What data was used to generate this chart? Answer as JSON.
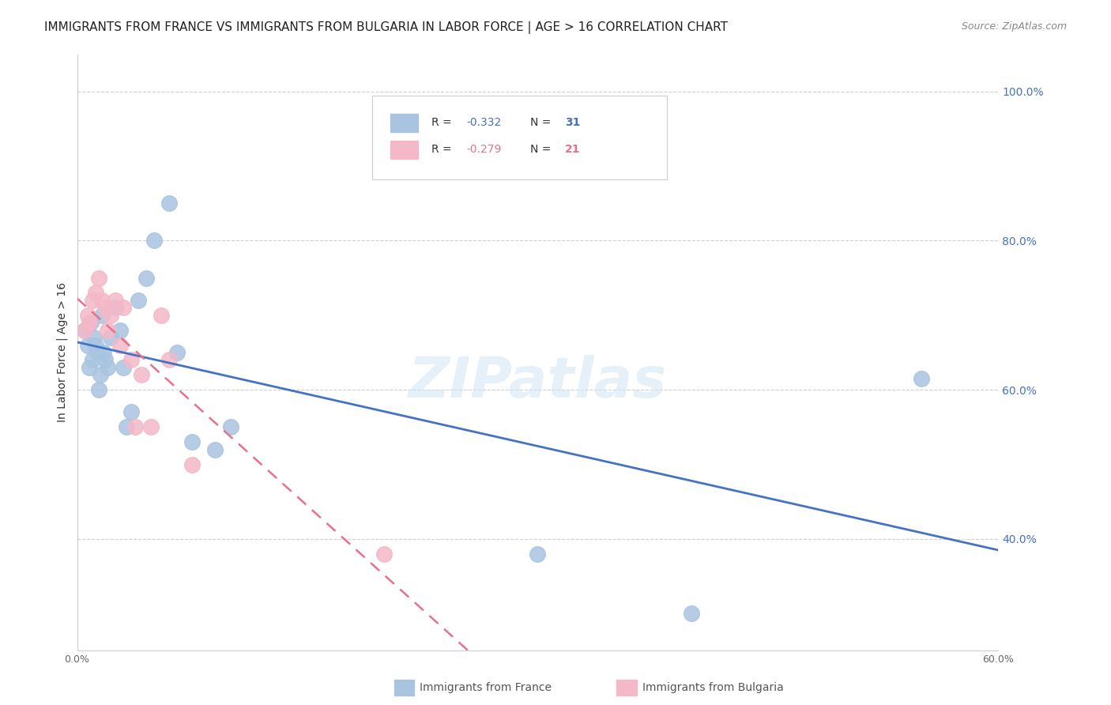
{
  "title": "IMMIGRANTS FROM FRANCE VS IMMIGRANTS FROM BULGARIA IN LABOR FORCE | AGE > 16 CORRELATION CHART",
  "source": "Source: ZipAtlas.com",
  "ylabel": "In Labor Force | Age > 16",
  "x_label_france": "Immigrants from France",
  "x_label_bulgaria": "Immigrants from Bulgaria",
  "x_min": 0.0,
  "x_max": 0.6,
  "y_min": 0.25,
  "y_max": 1.05,
  "france_color": "#a8c4e0",
  "france_line_color": "#4472c4",
  "bulgaria_color": "#f4b8c8",
  "bulgaria_line_color": "#e8708a",
  "right_axis_color": "#4472c4",
  "legend_france_r": "-0.332",
  "legend_france_n": "31",
  "legend_bulgaria_r": "-0.279",
  "legend_bulgaria_n": "21",
  "france_x": [
    0.005,
    0.007,
    0.008,
    0.009,
    0.01,
    0.011,
    0.012,
    0.013,
    0.014,
    0.015,
    0.016,
    0.017,
    0.018,
    0.02,
    0.022,
    0.025,
    0.028,
    0.03,
    0.032,
    0.035,
    0.04,
    0.045,
    0.05,
    0.06,
    0.065,
    0.075,
    0.09,
    0.1,
    0.3,
    0.4,
    0.55
  ],
  "france_y": [
    0.68,
    0.66,
    0.63,
    0.69,
    0.64,
    0.67,
    0.66,
    0.65,
    0.6,
    0.62,
    0.7,
    0.65,
    0.64,
    0.63,
    0.67,
    0.71,
    0.68,
    0.63,
    0.55,
    0.57,
    0.72,
    0.75,
    0.8,
    0.85,
    0.65,
    0.53,
    0.52,
    0.55,
    0.38,
    0.3,
    0.615
  ],
  "bulgaria_x": [
    0.005,
    0.007,
    0.008,
    0.01,
    0.012,
    0.014,
    0.016,
    0.018,
    0.02,
    0.022,
    0.025,
    0.028,
    0.03,
    0.035,
    0.038,
    0.042,
    0.048,
    0.055,
    0.06,
    0.075,
    0.2
  ],
  "bulgaria_y": [
    0.68,
    0.7,
    0.69,
    0.72,
    0.73,
    0.75,
    0.72,
    0.71,
    0.68,
    0.7,
    0.72,
    0.66,
    0.71,
    0.64,
    0.55,
    0.62,
    0.55,
    0.7,
    0.64,
    0.5,
    0.38
  ],
  "ytick_values": [
    0.25,
    0.4,
    0.5,
    0.6,
    0.7,
    0.8,
    0.9,
    1.0
  ],
  "ytick_labels": [
    "",
    "40.0%",
    "",
    "60.0%",
    "",
    "80.0%",
    "",
    "100.0%"
  ],
  "xtick_values": [
    0.0,
    0.1,
    0.2,
    0.3,
    0.4,
    0.5,
    0.6
  ],
  "xtick_labels": [
    "0.0%",
    "",
    "",
    "",
    "",
    "",
    "60.0%"
  ],
  "grid_color": "#d0d0d0",
  "background_color": "#ffffff",
  "title_fontsize": 11,
  "source_fontsize": 9,
  "axis_label_fontsize": 10
}
